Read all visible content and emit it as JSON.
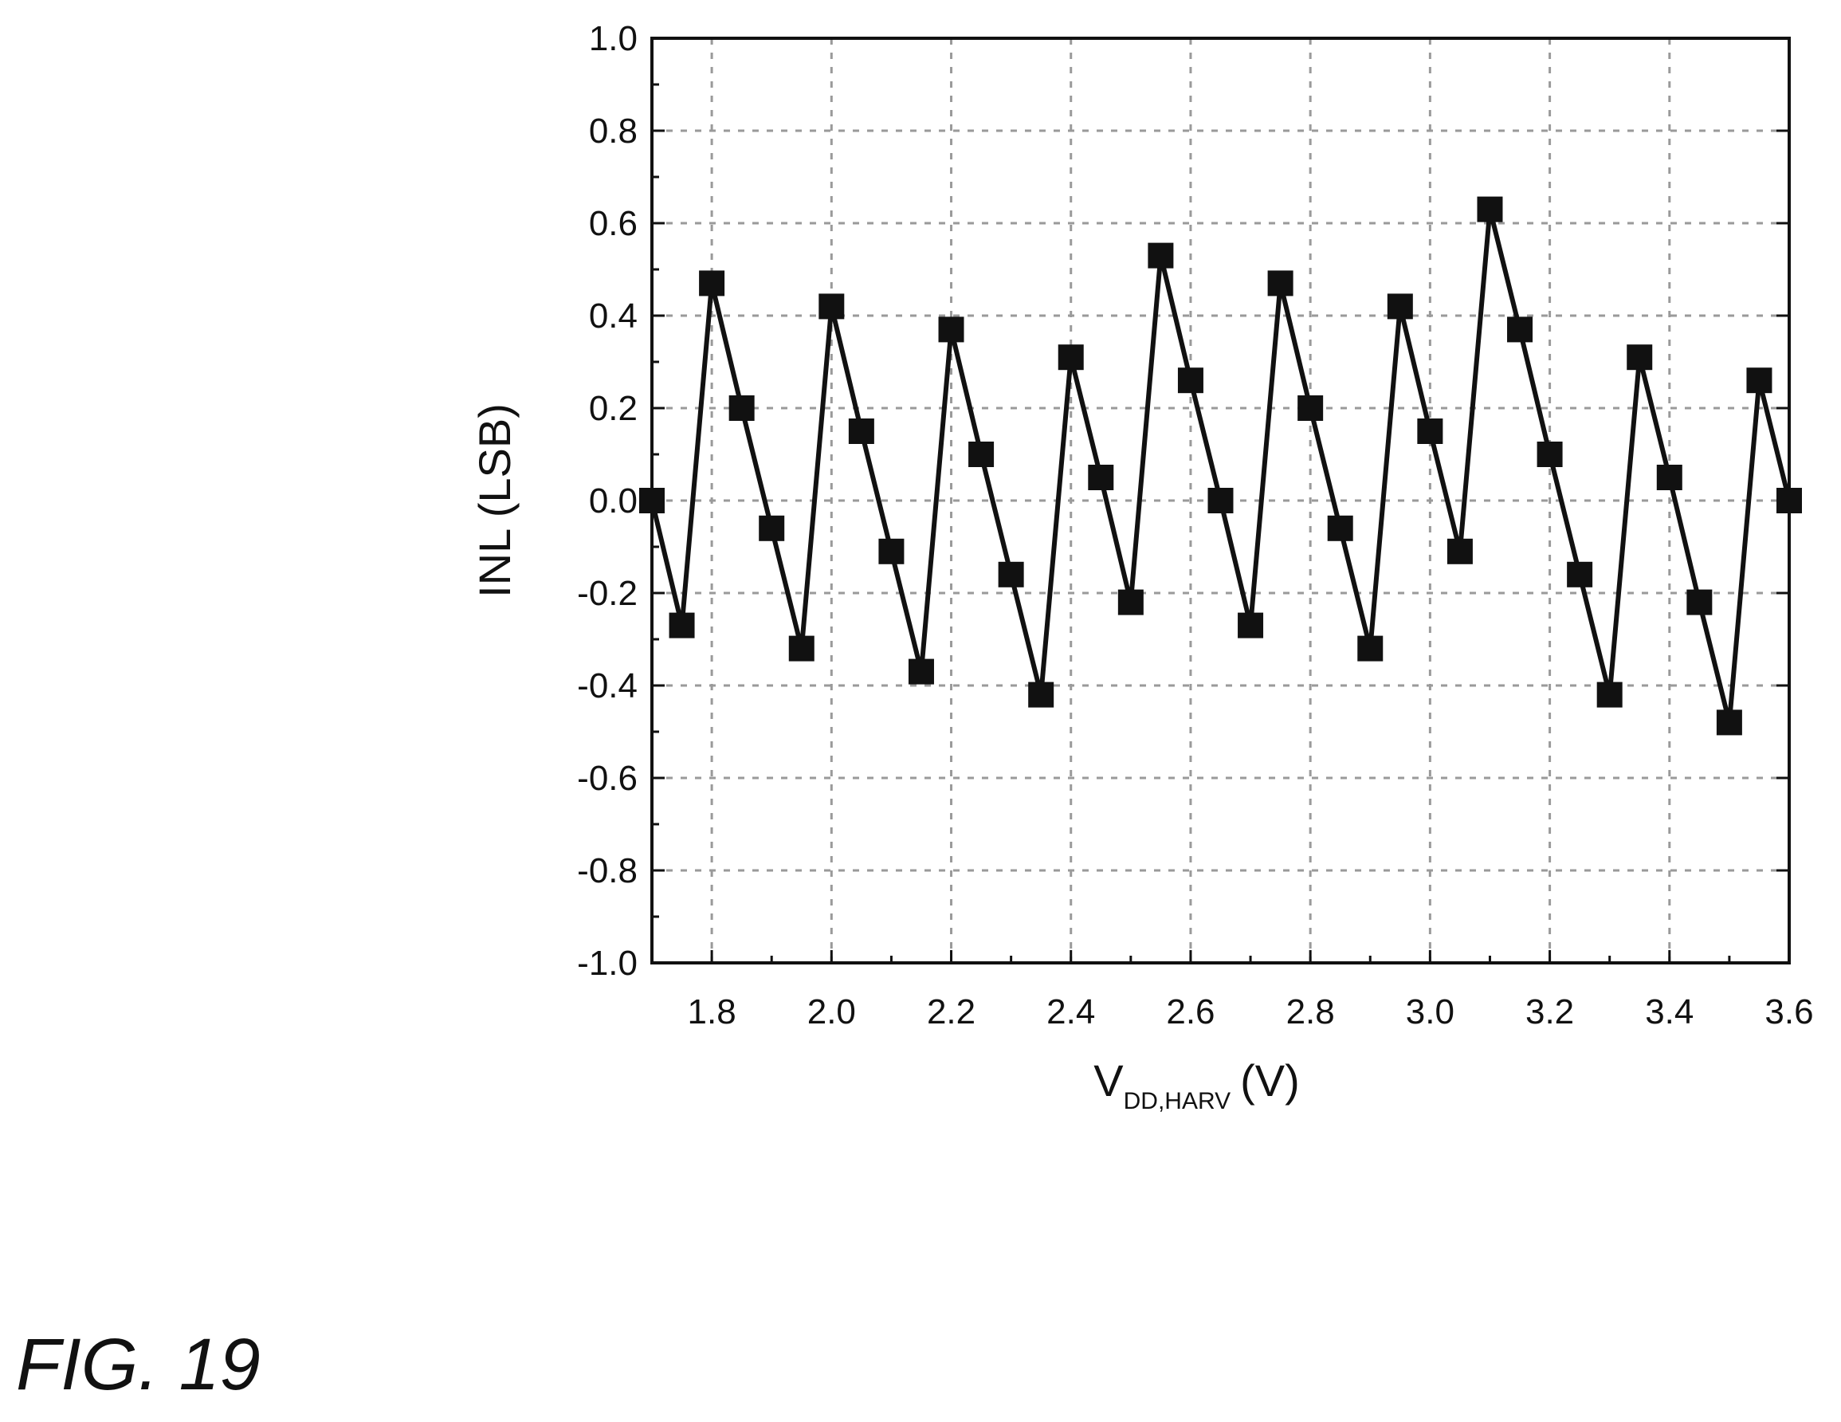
{
  "figure": {
    "caption": "FIG. 19"
  },
  "chart_data": {
    "type": "line",
    "title": "",
    "xlabel": {
      "main": "V",
      "subscript": "DD,HARV",
      "unit": "(V)"
    },
    "ylabel": "INL (LSB)",
    "xlim": [
      1.7,
      3.6
    ],
    "ylim": [
      -1.0,
      1.0
    ],
    "x_ticks": [
      "1.8",
      "2.0",
      "2.2",
      "2.4",
      "2.6",
      "2.8",
      "3.0",
      "3.2",
      "3.4",
      "3.6"
    ],
    "y_ticks": [
      "1.0",
      "0.8",
      "0.6",
      "0.4",
      "0.2",
      "0.0",
      "-0.2",
      "-0.4",
      "-0.6",
      "-0.8",
      "-1.0"
    ],
    "grid": true,
    "marker": "square",
    "series": [
      {
        "x": [
          1.7,
          1.75,
          1.8,
          1.85,
          1.9,
          1.95,
          2.0,
          2.05,
          2.1,
          2.15,
          2.2,
          2.25,
          2.3,
          2.35,
          2.4,
          2.45,
          2.5,
          2.55,
          2.6,
          2.65,
          2.7,
          2.75,
          2.8,
          2.85,
          2.9,
          2.95,
          3.0,
          3.05,
          3.1,
          3.15,
          3.2,
          3.25,
          3.3,
          3.35,
          3.4,
          3.45,
          3.5,
          3.55,
          3.6
        ],
        "y": [
          0.0,
          -0.27,
          0.47,
          0.2,
          -0.06,
          -0.32,
          0.42,
          0.15,
          -0.11,
          -0.37,
          0.37,
          0.1,
          -0.16,
          -0.42,
          0.31,
          0.05,
          -0.22,
          0.53,
          0.26,
          0.0,
          -0.27,
          0.47,
          0.2,
          -0.06,
          -0.32,
          0.42,
          0.15,
          -0.11,
          0.63,
          0.37,
          0.1,
          -0.16,
          -0.42,
          0.31,
          0.05,
          -0.22,
          -0.48,
          0.26,
          0.0
        ]
      }
    ],
    "colors": {
      "line": "#111111",
      "marker": "#111111",
      "grid": "#9a9a9a",
      "frame": "#111111"
    }
  }
}
